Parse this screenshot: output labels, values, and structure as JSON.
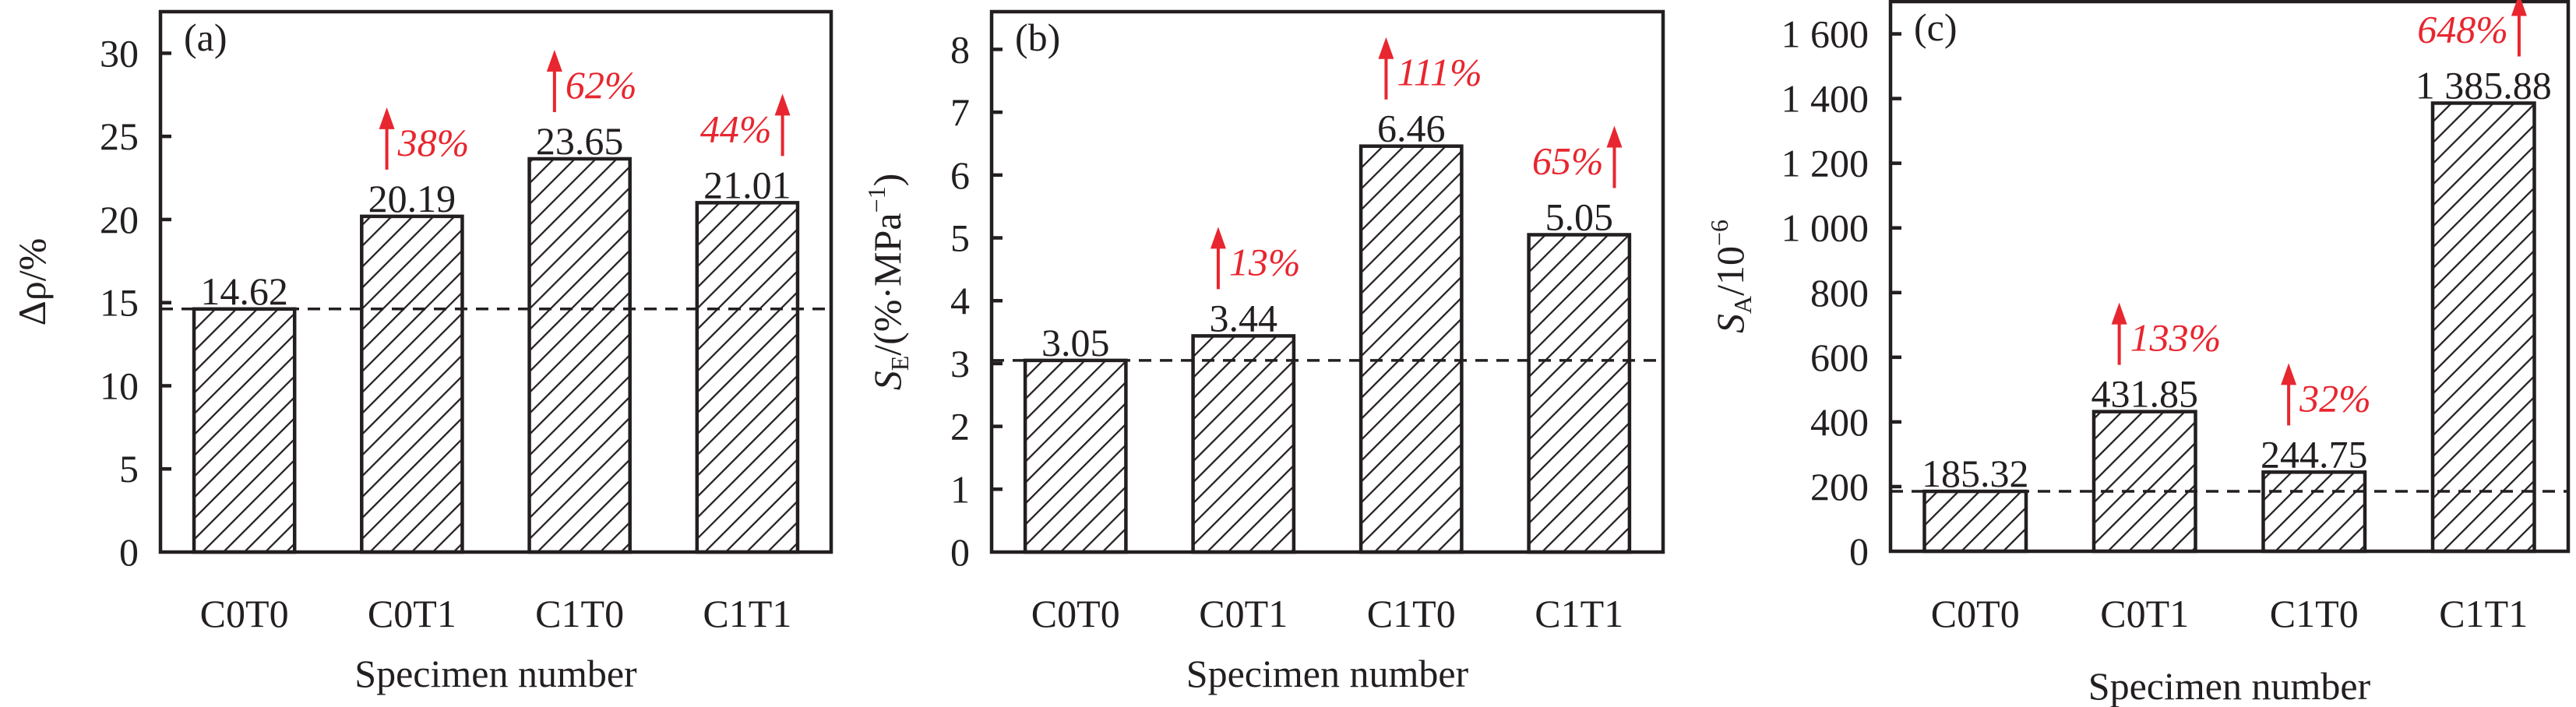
{
  "colors": {
    "ink": "#231f20",
    "accent_red": "#e8262f",
    "background": "#ffffff"
  },
  "chart_data": [
    {
      "type": "bar",
      "panel_tag": "(a)",
      "title": "",
      "xlabel": "Specimen number",
      "ylabel": "Δρ/%",
      "ylabel_parts": {
        "main": "Δρ/%",
        "subscript": "",
        "superscript": ""
      },
      "categories": [
        "C0T0",
        "C0T1",
        "C1T0",
        "C1T1"
      ],
      "values": [
        14.62,
        20.19,
        23.65,
        21.01
      ],
      "value_labels": [
        "14.62",
        "20.19",
        "23.65",
        "21.01"
      ],
      "ylim": [
        0,
        32.5
      ],
      "yticks": [
        0,
        5,
        10,
        15,
        20,
        25,
        30
      ],
      "ytick_labels": [
        "0",
        "5",
        "10",
        "15",
        "20",
        "25",
        "30"
      ],
      "baseline": 14.62,
      "baseline_style": "dashed",
      "bar_fill": "diagonal-hatch",
      "grid": false,
      "legend": "none",
      "annotations": [
        {
          "category": "C0T1",
          "text": "38%",
          "arrow": "up",
          "side": "right"
        },
        {
          "category": "C1T0",
          "text": "62%",
          "arrow": "up",
          "side": "right"
        },
        {
          "category": "C1T1",
          "text": "44%",
          "arrow": "up",
          "side": "left"
        }
      ]
    },
    {
      "type": "bar",
      "panel_tag": "(b)",
      "title": "",
      "xlabel": "Specimen number",
      "ylabel": "SE/(%·MPa−1)",
      "ylabel_parts": {
        "main": "S",
        "subscript": "E",
        "rest": "/(%·MPa",
        "superscript": "−1",
        "close": ")"
      },
      "categories": [
        "C0T0",
        "C0T1",
        "C1T0",
        "C1T1"
      ],
      "values": [
        3.05,
        3.44,
        6.46,
        5.05
      ],
      "value_labels": [
        "3.05",
        "3.44",
        "6.46",
        "5.05"
      ],
      "ylim": [
        0,
        8.6
      ],
      "yticks": [
        0,
        1,
        2,
        3,
        4,
        5,
        6,
        7,
        8
      ],
      "ytick_labels": [
        "0",
        "1",
        "2",
        "3",
        "4",
        "5",
        "6",
        "7",
        "8"
      ],
      "baseline": 3.05,
      "baseline_style": "dashed",
      "bar_fill": "diagonal-hatch",
      "grid": false,
      "legend": "none",
      "annotations": [
        {
          "category": "C0T1",
          "text": "13%",
          "arrow": "up",
          "side": "right"
        },
        {
          "category": "C1T0",
          "text": "111%",
          "arrow": "up",
          "side": "right"
        },
        {
          "category": "C1T1",
          "text": "65%",
          "arrow": "up",
          "side": "left"
        }
      ]
    },
    {
      "type": "bar",
      "panel_tag": "(c)",
      "title": "",
      "xlabel": "Specimen number",
      "ylabel": "SA/10−6",
      "ylabel_parts": {
        "main": "S",
        "subscript": "A",
        "rest": "/10",
        "superscript": "−6",
        "close": ""
      },
      "categories": [
        "C0T0",
        "C0T1",
        "C1T0",
        "C1T1"
      ],
      "values": [
        185.32,
        431.85,
        244.75,
        1385.88
      ],
      "value_labels": [
        "185.32",
        "431.85",
        "244.75",
        "1 385.88"
      ],
      "ylim": [
        0,
        1700
      ],
      "yticks": [
        0,
        200,
        400,
        600,
        800,
        1000,
        1200,
        1400,
        1600
      ],
      "ytick_labels": [
        "0",
        "200",
        "400",
        "600",
        "800",
        "1 000",
        "1 200",
        "1 400",
        "1 600"
      ],
      "baseline": 185.32,
      "baseline_style": "dashed",
      "bar_fill": "diagonal-hatch",
      "grid": false,
      "legend": "none",
      "annotations": [
        {
          "category": "C0T1",
          "text": "133%",
          "arrow": "up",
          "side": "right"
        },
        {
          "category": "C1T0",
          "text": "32%",
          "arrow": "up",
          "side": "right"
        },
        {
          "category": "C1T1",
          "text": "648%",
          "arrow": "up",
          "side": "left"
        }
      ]
    }
  ]
}
